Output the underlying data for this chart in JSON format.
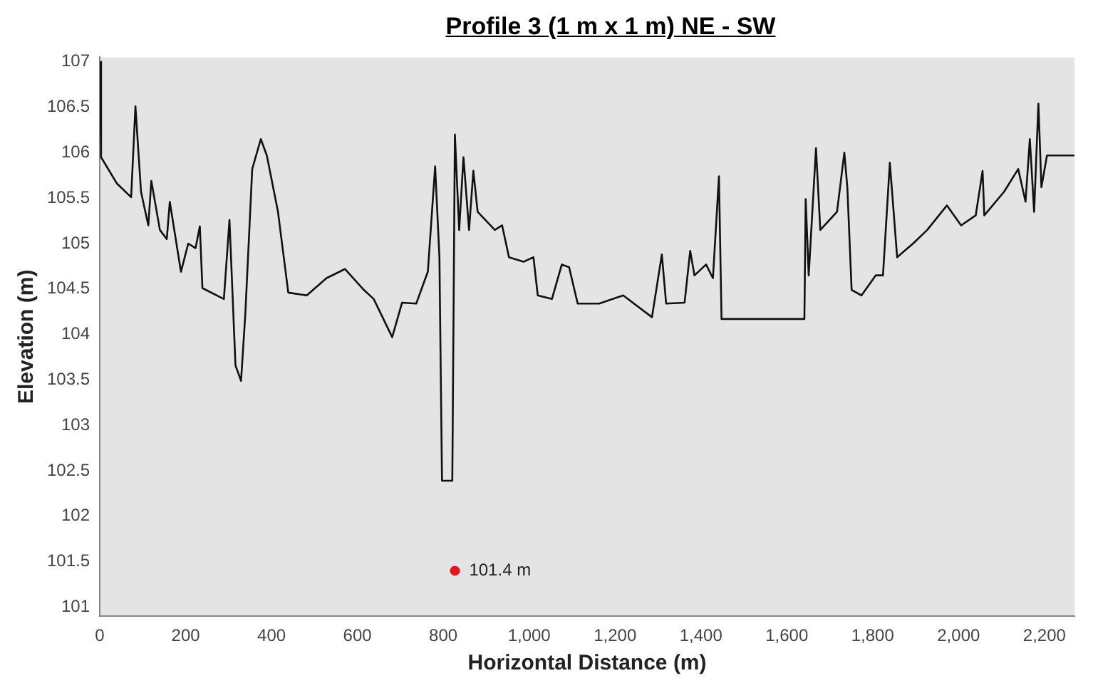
{
  "chart_data": {
    "type": "line",
    "title": "Profile 3 (1 m x 1 m) NE - SW",
    "xlabel": "Horizontal Distance (m)",
    "ylabel": "Elevation (m)",
    "xlim": [
      0,
      2270
    ],
    "ylim": [
      100.9,
      107.05
    ],
    "xticks": [
      0,
      200,
      400,
      600,
      800,
      {
        "value": 1000,
        "label": "1,000"
      },
      {
        "value": 1200,
        "label": "1,200"
      },
      {
        "value": 1400,
        "label": "1,400"
      },
      {
        "value": 1600,
        "label": "1,600"
      },
      {
        "value": 1800,
        "label": "1,800"
      },
      {
        "value": 2000,
        "label": "2,000"
      },
      {
        "value": 2200,
        "label": "2,200"
      }
    ],
    "yticks": [
      101,
      101.5,
      102,
      102.5,
      103,
      103.5,
      104,
      104.5,
      105,
      105.5,
      106,
      106.5,
      107
    ],
    "grid": false,
    "legend": false,
    "marker": "none",
    "line_style": "solid",
    "series": [
      {
        "color": "#111111",
        "x": [
          0,
          3,
          40,
          73,
          83,
          96,
          113,
          120,
          140,
          156,
          163,
          189,
          206,
          223,
          233,
          239,
          289,
          302,
          316,
          329,
          339,
          355,
          375,
          389,
          415,
          439,
          482,
          528,
          571,
          615,
          638,
          681,
          704,
          737,
          764,
          781,
          791,
          797,
          821,
          827,
          837,
          847,
          860,
          870,
          880,
          920,
          937,
          953,
          987,
          1010,
          1020,
          1053,
          1076,
          1093,
          1113,
          1163,
          1219,
          1286,
          1309,
          1319,
          1362,
          1375,
          1385,
          1412,
          1428,
          1442,
          1448,
          1551,
          1641,
          1644,
          1651,
          1668,
          1678,
          1717,
          1734,
          1741,
          1751,
          1774,
          1807,
          1824,
          1840,
          1857,
          1894,
          1927,
          1973,
          2006,
          2040,
          2056,
          2060,
          2106,
          2139,
          2156,
          2166,
          2176,
          2186,
          2193,
          2206,
          2270
        ],
        "values": [
          107.0,
          105.95,
          105.66,
          105.51,
          106.51,
          105.57,
          105.2,
          105.69,
          105.15,
          105.05,
          105.46,
          104.69,
          105.0,
          104.95,
          105.19,
          104.51,
          104.39,
          105.26,
          103.66,
          103.49,
          104.23,
          105.82,
          106.15,
          105.97,
          105.35,
          104.46,
          104.43,
          104.62,
          104.72,
          104.49,
          104.39,
          103.97,
          104.35,
          104.34,
          104.69,
          105.85,
          104.85,
          102.39,
          102.39,
          106.2,
          105.15,
          105.95,
          105.15,
          105.8,
          105.35,
          105.15,
          105.2,
          104.85,
          104.8,
          104.85,
          104.43,
          104.39,
          104.77,
          104.74,
          104.34,
          104.34,
          104.43,
          104.19,
          104.88,
          104.34,
          104.35,
          104.92,
          104.65,
          104.77,
          104.62,
          105.74,
          104.17,
          104.17,
          104.17,
          105.49,
          104.65,
          106.05,
          105.15,
          105.35,
          106.0,
          105.62,
          104.49,
          104.43,
          104.65,
          104.65,
          105.89,
          104.85,
          105.0,
          105.15,
          105.42,
          105.2,
          105.31,
          105.8,
          105.31,
          105.57,
          105.82,
          105.46,
          106.15,
          105.35,
          106.54,
          105.62,
          105.97,
          105.97
        ]
      },
      {
        "type": "scatter",
        "color": "#e8141c",
        "marker": "circle",
        "x": [
          827
        ],
        "values": [
          101.4
        ]
      }
    ],
    "annotations": [
      {
        "text": "101.4 m",
        "x": 827,
        "y": 101.4
      }
    ]
  }
}
